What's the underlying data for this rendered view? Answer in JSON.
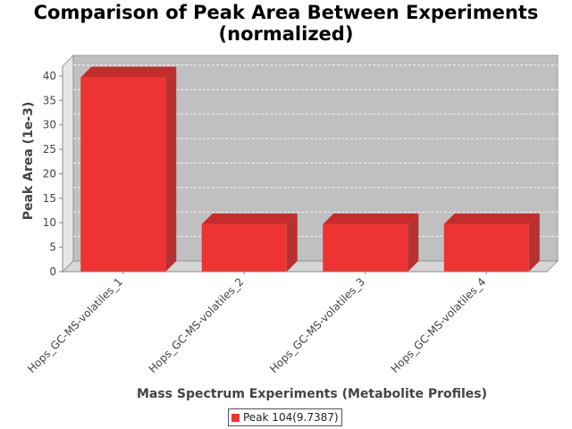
{
  "chart_data": {
    "type": "bar",
    "title": [
      "Comparison of Peak Area Between Experiments",
      "(normalized)"
    ],
    "xlabel": "Mass Spectrum Experiments (Metabolite Profiles)",
    "ylabel": "Peak Area (1e-3)",
    "categories": [
      "Hops_GC-MS-volatiles_1",
      "Hops_GC-MS-volatiles_2",
      "Hops_GC-MS-volatiles_3",
      "Hops_GC-MS-volatiles_4"
    ],
    "series": [
      {
        "name": "Peak 104(9.7387)",
        "values": [
          39.7,
          9.7,
          9.7,
          9.7
        ],
        "color": "#ee3333"
      }
    ],
    "ylim": [
      0,
      42
    ],
    "yticks": [
      0,
      5,
      10,
      15,
      20,
      25,
      30,
      35,
      40
    ],
    "grid": true,
    "legend_position": "bottom",
    "style": "3d",
    "plot_background": "#c0c0c0"
  }
}
